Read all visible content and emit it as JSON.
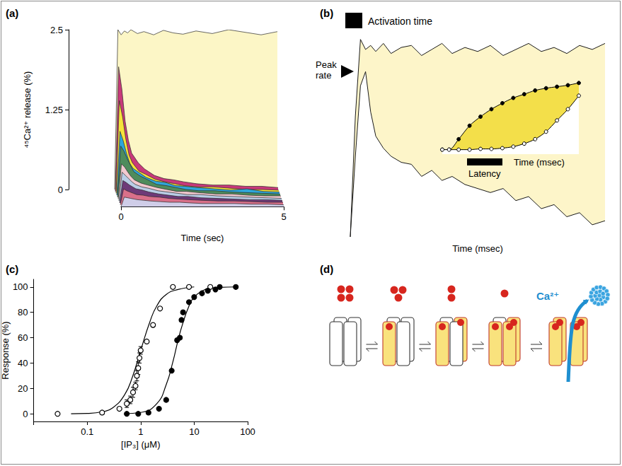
{
  "chart_data": [
    {
      "type": "area",
      "panel": "(a)",
      "ylabel": "⁴⁵Ca²⁺ release (%)",
      "xlabel": "Time (sec)",
      "xlim": [
        0,
        5
      ],
      "xticks": [
        0,
        5
      ],
      "ylim": [
        0,
        2.5
      ],
      "yticks": [
        0,
        1.25,
        2.5
      ],
      "grid": false,
      "x": [
        0,
        0.1,
        0.2,
        0.3,
        0.4,
        0.5,
        0.7,
        0.9,
        1.2,
        1.5,
        1.8,
        2.1,
        2.5,
        3,
        3.5,
        4,
        4.5,
        5
      ],
      "series": [
        {
          "color": "#fcf6c6",
          "values": [
            0,
            2.5,
            2.42,
            2.48,
            2.45,
            2.5,
            2.44,
            2.47,
            2.42,
            2.49,
            2.45,
            2.43,
            2.48,
            2.44,
            2.5,
            2.46,
            2.42,
            2.47
          ]
        },
        {
          "color": "#c8397a",
          "values": [
            0,
            1.95,
            1.6,
            1.1,
            0.8,
            0.6,
            0.45,
            0.35,
            0.25,
            0.2,
            0.18,
            0.15,
            0.12,
            0.1,
            0.1,
            0.08,
            0.08,
            0.06
          ]
        },
        {
          "color": "#f5e23c",
          "values": [
            0,
            1.45,
            1.2,
            0.85,
            0.6,
            0.48,
            0.35,
            0.3,
            0.22,
            0.18,
            0.15,
            0.12,
            0.1,
            0.1,
            0.08,
            0.06,
            0.06,
            0.05
          ]
        },
        {
          "color": "#2fa6da",
          "values": [
            0,
            1.0,
            0.85,
            0.65,
            0.5,
            0.42,
            0.35,
            0.28,
            0.22,
            0.2,
            0.15,
            0.14,
            0.12,
            0.1,
            0.08,
            0.1,
            0.06,
            0.05
          ]
        },
        {
          "color": "#4e8c5c",
          "values": [
            0,
            0.8,
            0.72,
            0.6,
            0.5,
            0.4,
            0.33,
            0.28,
            0.2,
            0.18,
            0.15,
            0.12,
            0.1,
            0.1,
            0.08,
            0.07,
            0.06,
            0.05
          ]
        },
        {
          "color": "#f2c9cf",
          "values": [
            0,
            0.55,
            0.5,
            0.42,
            0.35,
            0.3,
            0.25,
            0.22,
            0.18,
            0.15,
            0.12,
            0.12,
            0.1,
            0.08,
            0.08,
            0.06,
            0.05,
            0.05
          ]
        },
        {
          "color": "#b9cde6",
          "values": [
            0,
            0.45,
            0.4,
            0.35,
            0.3,
            0.26,
            0.22,
            0.2,
            0.16,
            0.14,
            0.12,
            0.1,
            0.1,
            0.08,
            0.07,
            0.06,
            0.05,
            0.04
          ]
        },
        {
          "color": "#6e3a78",
          "values": [
            0,
            0.35,
            0.32,
            0.28,
            0.25,
            0.22,
            0.2,
            0.17,
            0.14,
            0.12,
            0.1,
            0.1,
            0.08,
            0.07,
            0.06,
            0.05,
            0.05,
            0.04
          ]
        },
        {
          "color": "#d9708a",
          "values": [
            0,
            0.25,
            0.22,
            0.2,
            0.18,
            0.16,
            0.15,
            0.13,
            0.12,
            0.1,
            0.09,
            0.08,
            0.07,
            0.06,
            0.06,
            0.05,
            0.04,
            0.04
          ]
        },
        {
          "color": "#cfcde8",
          "values": [
            0,
            0.15,
            0.14,
            0.13,
            0.12,
            0.11,
            0.1,
            0.09,
            0.08,
            0.07,
            0.07,
            0.06,
            0.05,
            0.05,
            0.05,
            0.04,
            0.04,
            0.03
          ]
        }
      ]
    },
    {
      "type": "area",
      "panel": "(b)",
      "xlabel": "Time (msec)",
      "tick_labels": false,
      "grid": false,
      "xlim": [
        0,
        100
      ],
      "ylim": [
        0,
        100
      ],
      "annotations": [
        "Activation time",
        "Peak rate",
        "Latency"
      ],
      "x": [
        0,
        2,
        4,
        6,
        8,
        10,
        13,
        16,
        20,
        24,
        28,
        32,
        36,
        40,
        45,
        50,
        55,
        60,
        65,
        70,
        75,
        80,
        85,
        90,
        95,
        100
      ],
      "series": [
        {
          "color": "#fdf5c9",
          "values": [
            0,
            60,
            98,
            93,
            95,
            92,
            96,
            91,
            94,
            95,
            90,
            93,
            96,
            91,
            94,
            92,
            95,
            90,
            93,
            96,
            92,
            94,
            91,
            95,
            93,
            96
          ]
        },
        {
          "color": "#ffffff",
          "values": [
            0,
            40,
            75,
            82,
            62,
            50,
            44,
            40,
            37,
            36,
            30,
            33,
            28,
            30,
            26,
            24,
            22,
            24,
            18,
            20,
            14,
            16,
            10,
            12,
            6,
            8
          ]
        }
      ],
      "inset": {
        "type": "line",
        "xlabel": "Time (msec)",
        "tick_labels": false,
        "grid": false,
        "xlim": [
          0,
          100
        ],
        "ylim": [
          0,
          100
        ],
        "x": [
          0,
          5,
          12,
          20,
          28,
          36,
          44,
          52,
          60,
          68,
          76,
          84,
          92,
          100
        ],
        "series": [
          {
            "color": "#000000",
            "marker": "filled",
            "values": [
              6,
              6,
              20,
              38,
              50,
              60,
              68,
              75,
              80,
              85,
              88,
              90,
              92,
              95
            ]
          },
          {
            "color": "#000000",
            "marker": "open",
            "values": [
              6,
              6,
              6,
              6,
              7,
              7,
              8,
              10,
              14,
              20,
              30,
              45,
              60,
              78
            ]
          }
        ]
      }
    },
    {
      "type": "scatter",
      "panel": "(c)",
      "xlabel": "[IP₃] (μM)",
      "ylabel": "Response (%)",
      "log": "x",
      "grid": false,
      "xlim": [
        0.01,
        100
      ],
      "xticks": [
        0.1,
        1,
        10,
        100
      ],
      "ylim": [
        -6,
        106
      ],
      "yticks": [
        0,
        20,
        40,
        60,
        80,
        100
      ],
      "series": [
        {
          "color": "#000000",
          "marker": "open",
          "x": [
            0.028,
            0.19,
            0.4,
            0.55,
            0.64,
            0.72,
            0.8,
            0.85,
            0.9,
            0.95,
            1.0,
            1.3,
            1.7,
            2.3,
            4,
            8,
            20
          ],
          "values": [
            0,
            1,
            4,
            8,
            11,
            17,
            22,
            30,
            36,
            44,
            50,
            57,
            70,
            83,
            100,
            100,
            100
          ],
          "errors": [
            0,
            0,
            0,
            3,
            3,
            4,
            3,
            4,
            5,
            4,
            3,
            0,
            0,
            0,
            0,
            0,
            0
          ],
          "fit": {
            "x": [
              0.05,
              0.1,
              0.2,
              0.3,
              0.5,
              0.7,
              1,
              1.5,
              2,
              3,
              5,
              10
            ],
            "values": [
              0.06,
              0.3,
              1.8,
              4.7,
              15,
              29,
              50,
              73,
              85,
              94,
              98,
              100
            ]
          }
        },
        {
          "color": "#000000",
          "marker": "filled",
          "x": [
            0.55,
            0.9,
            1.4,
            2.2,
            3,
            3.8,
            4.8,
            5.4,
            5.8,
            6.2,
            8,
            10,
            14,
            18,
            25,
            30,
            60
          ],
          "values": [
            0,
            0,
            1,
            4,
            11,
            34,
            58,
            60,
            74,
            80,
            88,
            92,
            95,
            97,
            98,
            100,
            100
          ],
          "fit": {
            "x": [
              0.5,
              1,
              2,
              3,
              4,
              5,
              6,
              8,
              10,
              15,
              20,
              30,
              60
            ],
            "values": [
              0.14,
              1.1,
              8,
              23,
              41,
              58,
              70,
              85,
              92,
              97.4,
              98.9,
              99.7,
              100
            ]
          }
        }
      ]
    }
  ],
  "diagram": {
    "panel": "(d)",
    "release": "Ca²⁺",
    "states": [
      {
        "free": 4,
        "bound": 0
      },
      {
        "free": 3,
        "bound": 1
      },
      {
        "free": 2,
        "bound": 2
      },
      {
        "free": 1,
        "bound": 3
      },
      {
        "free": 0,
        "bound": 4
      }
    ]
  }
}
